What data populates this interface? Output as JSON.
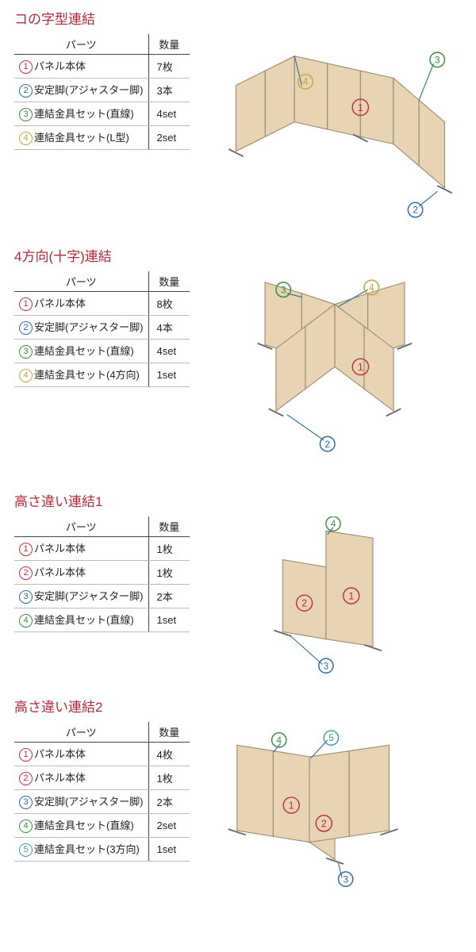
{
  "header": {
    "parts": "パーツ",
    "qty": "数量"
  },
  "colors": {
    "title": "#b22a3a",
    "c1": "#c23040",
    "c2": "#2a6aa8",
    "c3": "#3a8a3f",
    "c4": "#c9a23a",
    "c5": "#3aa0a0",
    "panel_fill": "#e6d4b2",
    "panel_stroke": "#9a8a70",
    "callout_line": "#2a6aa8"
  },
  "sections": [
    {
      "title": "コの字型連結",
      "rows": [
        {
          "n": 1,
          "ck": "c1",
          "label": "パネル本体",
          "qty": "7枚"
        },
        {
          "n": 2,
          "ck": "c2",
          "label": "安定脚(アジャスター脚)",
          "qty": "3本"
        },
        {
          "n": 3,
          "ck": "c3",
          "label": "連結金具セット(直線)",
          "qty": "4set"
        },
        {
          "n": 4,
          "ck": "c4",
          "label": "連結金具セット(L型)",
          "qty": "2set"
        }
      ],
      "diagram": "u-shape"
    },
    {
      "title": "4方向(十字)連結",
      "rows": [
        {
          "n": 1,
          "ck": "c1",
          "label": "パネル本体",
          "qty": "8枚"
        },
        {
          "n": 2,
          "ck": "c2",
          "label": "安定脚(アジャスター脚)",
          "qty": "4本"
        },
        {
          "n": 3,
          "ck": "c3",
          "label": "連結金具セット(直線)",
          "qty": "4set"
        },
        {
          "n": 4,
          "ck": "c4",
          "label": "連結金具セット(4方向)",
          "qty": "1set"
        }
      ],
      "diagram": "cross"
    },
    {
      "title": "高さ違い連結1",
      "rows": [
        {
          "n": 1,
          "ck": "c1",
          "label": "パネル本体",
          "qty": "1枚"
        },
        {
          "n": 2,
          "ck": "c1",
          "label": "パネル本体",
          "qty": "1枚"
        },
        {
          "n": 3,
          "ck": "c2",
          "label": "安定脚(アジャスター脚)",
          "qty": "2本"
        },
        {
          "n": 4,
          "ck": "c3",
          "label": "連結金具セット(直線)",
          "qty": "1set"
        }
      ],
      "diagram": "height1"
    },
    {
      "title": "高さ違い連結2",
      "rows": [
        {
          "n": 1,
          "ck": "c1",
          "label": "パネル本体",
          "qty": "4枚"
        },
        {
          "n": 2,
          "ck": "c1",
          "label": "パネル本体",
          "qty": "1枚"
        },
        {
          "n": 3,
          "ck": "c2",
          "label": "安定脚(アジャスター脚)",
          "qty": "2本"
        },
        {
          "n": 4,
          "ck": "c3",
          "label": "連結金具セット(直線)",
          "qty": "2set"
        },
        {
          "n": 5,
          "ck": "c5",
          "label": "連結金具セット(3方向)",
          "qty": "1set"
        }
      ],
      "diagram": "height2"
    }
  ]
}
